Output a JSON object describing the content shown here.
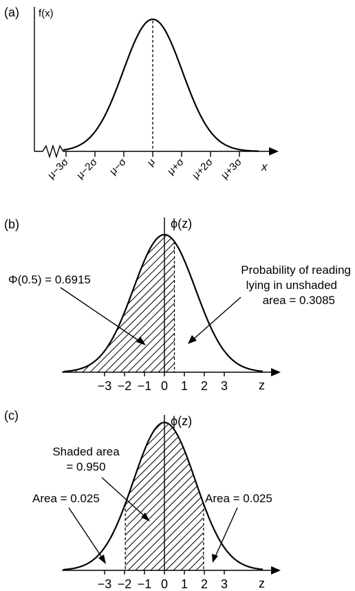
{
  "panel_a": {
    "label": "(a)",
    "y_label": "f(x)",
    "x_label": "x",
    "ticks": [
      "μ−3σ",
      "μ−2σ",
      "μ−σ",
      "μ",
      "μ+σ",
      "μ+2σ",
      "μ+3σ"
    ]
  },
  "panel_b": {
    "label": "(b)",
    "y_label": "ϕ(z)",
    "x_label": "z",
    "ticks": [
      "−3",
      "−2",
      "−1",
      "0",
      "1",
      "2",
      "3"
    ],
    "left_annotation": "Φ(0.5) = 0.6915",
    "right_annotation": [
      "Probability of reading",
      "lying in unshaded",
      "area = 0.3085"
    ]
  },
  "panel_c": {
    "label": "(c)",
    "y_label": "ϕ(z)",
    "x_label": "z",
    "ticks": [
      "−3",
      "−2",
      "−1",
      "0",
      "1",
      "2",
      "3"
    ],
    "center_annotation": [
      "Shaded area",
      "= 0.950"
    ],
    "left_annotation": "Area = 0.025",
    "right_annotation": "Area = 0.025"
  }
}
